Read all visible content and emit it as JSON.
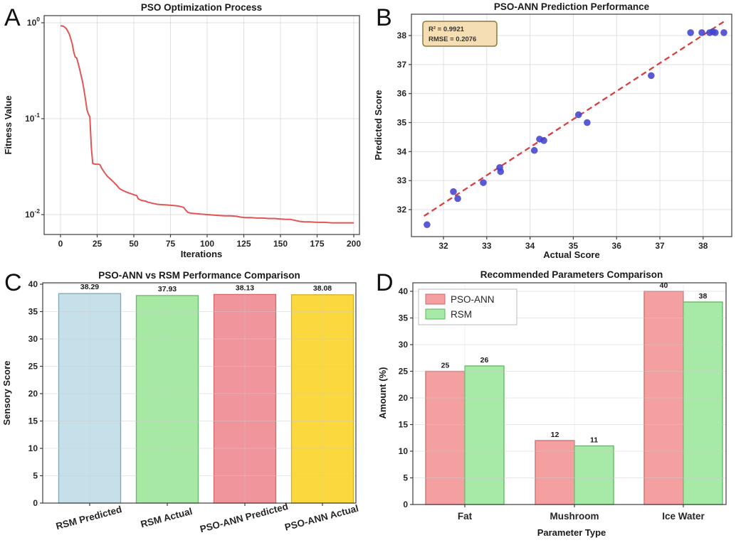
{
  "figure": {
    "background": "#ffffff"
  },
  "panels": [
    {
      "letter": "A"
    },
    {
      "letter": "B"
    },
    {
      "letter": "C"
    },
    {
      "letter": "D"
    }
  ],
  "chart_data": [
    {
      "type": "line",
      "title": "PSO Optimization Process",
      "xlabel": "Iterations",
      "ylabel": "Fitness Value",
      "yscale": "log",
      "xticks": [
        0,
        25,
        50,
        75,
        100,
        125,
        150,
        175,
        200
      ],
      "ytick_exponents": [
        0,
        -1,
        -2
      ],
      "xlim": [
        -11,
        204
      ],
      "ylim": [
        0.0062,
        1.18
      ],
      "grid": true,
      "line_color": "#e25555",
      "x": [
        0,
        2,
        4,
        6,
        7,
        8,
        9,
        10,
        11,
        12,
        13,
        14,
        15,
        16,
        17,
        18,
        19,
        20,
        21,
        22,
        24,
        26,
        27,
        28,
        30,
        32,
        34,
        36,
        38,
        40,
        42,
        44,
        46,
        48,
        50,
        52,
        53,
        55,
        58,
        60,
        63,
        66,
        69,
        72,
        75,
        78,
        80,
        82,
        84,
        85,
        87,
        90,
        93,
        96,
        100,
        104,
        108,
        112,
        116,
        120,
        123,
        126,
        130,
        134,
        138,
        142,
        146,
        150,
        154,
        157,
        160,
        163,
        166,
        170,
        175,
        180,
        185,
        190,
        195,
        200
      ],
      "y": [
        0.93,
        0.92,
        0.87,
        0.76,
        0.68,
        0.6,
        0.5,
        0.44,
        0.43,
        0.38,
        0.33,
        0.285,
        0.245,
        0.2,
        0.16,
        0.125,
        0.112,
        0.105,
        0.05,
        0.034,
        0.0335,
        0.0335,
        0.033,
        0.0305,
        0.0275,
        0.025,
        0.0235,
        0.022,
        0.0205,
        0.0188,
        0.018,
        0.0174,
        0.0169,
        0.0165,
        0.0161,
        0.0158,
        0.0146,
        0.0141,
        0.0138,
        0.0134,
        0.0131,
        0.0128,
        0.0127,
        0.0126,
        0.0125,
        0.0124,
        0.0123,
        0.0121,
        0.0119,
        0.0113,
        0.0105,
        0.0103,
        0.0102,
        0.0101,
        0.01,
        0.0099,
        0.0098,
        0.0097,
        0.0097,
        0.0096,
        0.0094,
        0.0093,
        0.0093,
        0.0092,
        0.0092,
        0.0091,
        0.0091,
        0.009,
        0.0089,
        0.0089,
        0.0087,
        0.0085,
        0.0084,
        0.0084,
        0.0083,
        0.0083,
        0.0082,
        0.0082,
        0.0082,
        0.0082
      ]
    },
    {
      "type": "scatter",
      "title": "PSO-ANN Prediction Performance",
      "xlabel": "Actual Score",
      "ylabel": "Predicted Score",
      "xticks": [
        32,
        33,
        34,
        35,
        36,
        37,
        38
      ],
      "yticks": [
        32,
        33,
        34,
        35,
        36,
        37,
        38
      ],
      "grid": true,
      "point_color": "#4343cf",
      "fit_line_color": "#d84040",
      "fit_line": {
        "x1": 31.55,
        "y1": 31.78,
        "x2": 38.5,
        "y2": 38.5
      },
      "annotation": {
        "line1": "R² = 0.9921",
        "line2": "RMSE = 0.2076",
        "fill": "#f5deb3"
      },
      "points": [
        [
          31.62,
          31.48
        ],
        [
          32.23,
          32.62
        ],
        [
          32.33,
          32.38
        ],
        [
          32.92,
          32.93
        ],
        [
          33.3,
          33.45
        ],
        [
          33.32,
          33.31
        ],
        [
          34.1,
          34.04
        ],
        [
          34.22,
          34.43
        ],
        [
          34.32,
          34.38
        ],
        [
          35.12,
          35.27
        ],
        [
          35.32,
          35.0
        ],
        [
          36.8,
          36.62
        ],
        [
          37.71,
          38.1
        ],
        [
          37.97,
          38.1
        ],
        [
          38.15,
          38.1
        ],
        [
          38.22,
          38.13
        ],
        [
          38.28,
          38.1
        ],
        [
          38.48,
          38.1
        ]
      ]
    },
    {
      "type": "bar",
      "title": "PSO-ANN vs RSM Performance Comparison",
      "ylabel": "Sensory Score",
      "categories": [
        "RSM Predicted",
        "RSM Actual",
        "PSO-ANN Predicted",
        "PSO-ANN Actual"
      ],
      "values": [
        38.29,
        37.93,
        38.13,
        38.08
      ],
      "value_labels": [
        "38.29",
        "37.93",
        "38.13",
        "38.08"
      ],
      "bar_fills": [
        "#c6e0ea",
        "#a6e8a4",
        "#f0959b",
        "#fbd83d"
      ],
      "bar_edges": [
        "#7fa8b8",
        "#6cb86a",
        "#d06a70",
        "#d4af24"
      ],
      "yticks": [
        0,
        5,
        10,
        15,
        20,
        25,
        30,
        35,
        40
      ],
      "ylim": [
        0,
        40
      ],
      "grid": true
    },
    {
      "type": "grouped_bar",
      "title": "Recommended Parameters Comparison",
      "xlabel": "Parameter Type",
      "ylabel": "Amount (%)",
      "categories": [
        "Fat",
        "Mushroom",
        "Ice Water"
      ],
      "series": [
        {
          "name": "PSO-ANN",
          "values": [
            25,
            12,
            40
          ],
          "color": "#f4a0a0",
          "edge": "#c96b6b"
        },
        {
          "name": "RSM",
          "values": [
            26,
            11,
            38
          ],
          "color": "#a7e9a7",
          "edge": "#5cb85c"
        }
      ],
      "value_labels": [
        [
          "25",
          "12",
          "40"
        ],
        [
          "26",
          "11",
          "38"
        ]
      ],
      "yticks": [
        0,
        5,
        10,
        15,
        20,
        25,
        30,
        35,
        40
      ],
      "ylim": [
        0,
        42
      ],
      "legend_position": "upper left",
      "grid": true
    }
  ]
}
